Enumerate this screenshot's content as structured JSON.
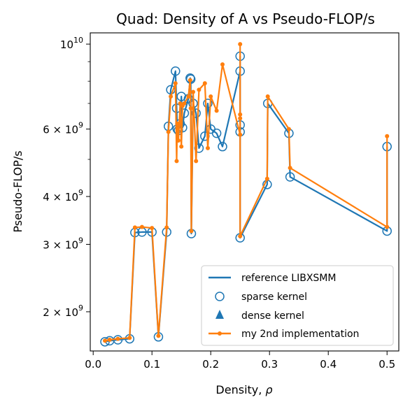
{
  "chart_data": {
    "type": "line",
    "title": "Quad: Density of A vs Pseudo-FLOP/s",
    "xlabel": "Density, ρ",
    "ylabel": "Pseudo-FLOP/s",
    "xlim": [
      -0.005,
      0.52
    ],
    "ylim": [
      1580000000.0,
      10700000000.0
    ],
    "y_scale": "log",
    "x_ticks": [
      0.0,
      0.1,
      0.2,
      0.3,
      0.4,
      0.5
    ],
    "x_tick_labels": [
      "0.0",
      "0.1",
      "0.2",
      "0.3",
      "0.4",
      "0.5"
    ],
    "y_ticks": [
      2000000000.0,
      3000000000.0,
      4000000000.0,
      6000000000.0,
      10000000000.0
    ],
    "y_tick_labels": [
      {
        "mantissa": "2 × 10",
        "exp": "9"
      },
      {
        "mantissa": "3 × 10",
        "exp": "9"
      },
      {
        "mantissa": "4 × 10",
        "exp": "9"
      },
      {
        "mantissa": "6 × 10",
        "exp": "9"
      },
      {
        "mantissa": "10",
        "exp": "10"
      }
    ],
    "y_minor_ticks": [
      5000000000.0,
      7000000000.0,
      8000000000.0,
      9000000000.0
    ],
    "grid": false,
    "legend_position": "lower right",
    "colors": {
      "reference": "#1f77b4",
      "sparse": "#1f77b4",
      "dense": "#1f77b4",
      "mine": "#ff7f0e"
    },
    "series": [
      {
        "name": "reference LIBXSMM",
        "kind": "line",
        "x": [
          0.02,
          0.028,
          0.042,
          0.062,
          0.071,
          0.083,
          0.1,
          0.111,
          0.125,
          0.128,
          0.132,
          0.14,
          0.142,
          0.143,
          0.145,
          0.148,
          0.15,
          0.152,
          0.155,
          0.162,
          0.165,
          0.166,
          0.167,
          0.17,
          0.175,
          0.18,
          0.19,
          0.195,
          0.2,
          0.21,
          0.22,
          0.25,
          0.25,
          0.25,
          0.25,
          0.25,
          0.296,
          0.297,
          0.333,
          0.335,
          0.5,
          0.5
        ],
        "values": [
          1670000000.0,
          1680000000.0,
          1690000000.0,
          1700000000.0,
          3220000000.0,
          3230000000.0,
          3230000000.0,
          1720000000.0,
          3230000000.0,
          6100000000.0,
          7600000000.0,
          8500000000.0,
          6800000000.0,
          6000000000.0,
          5950000000.0,
          6200000000.0,
          7300000000.0,
          6050000000.0,
          6600000000.0,
          7200000000.0,
          8150000000.0,
          8100000000.0,
          3200000000.0,
          7000000000.0,
          6600000000.0,
          5350000000.0,
          5750000000.0,
          7000000000.0,
          6000000000.0,
          5850000000.0,
          5400000000.0,
          8500000000.0,
          5900000000.0,
          6150000000.0,
          9300000000.0,
          3120000000.0,
          4300000000.0,
          7000000000.0,
          5850000000.0,
          4500000000.0,
          3250000000.0,
          5400000000.0
        ]
      },
      {
        "name": "sparse kernel",
        "kind": "markers",
        "marker": "open-circle",
        "x": [
          0.02,
          0.028,
          0.042,
          0.062,
          0.071,
          0.083,
          0.1,
          0.111,
          0.125,
          0.128,
          0.132,
          0.14,
          0.142,
          0.143,
          0.145,
          0.148,
          0.15,
          0.152,
          0.155,
          0.162,
          0.165,
          0.166,
          0.167,
          0.17,
          0.175,
          0.18,
          0.19,
          0.195,
          0.2,
          0.21,
          0.22,
          0.25,
          0.25,
          0.25,
          0.25,
          0.25,
          0.296,
          0.297,
          0.333,
          0.335,
          0.5,
          0.5
        ],
        "values": [
          1670000000.0,
          1680000000.0,
          1690000000.0,
          1700000000.0,
          3220000000.0,
          3230000000.0,
          3230000000.0,
          1720000000.0,
          3230000000.0,
          6100000000.0,
          7600000000.0,
          8500000000.0,
          6800000000.0,
          6000000000.0,
          5950000000.0,
          6200000000.0,
          7300000000.0,
          6050000000.0,
          6600000000.0,
          7200000000.0,
          8150000000.0,
          8100000000.0,
          3200000000.0,
          7000000000.0,
          6600000000.0,
          5350000000.0,
          5750000000.0,
          7000000000.0,
          6000000000.0,
          5850000000.0,
          5400000000.0,
          8500000000.0,
          5900000000.0,
          6150000000.0,
          9300000000.0,
          3120000000.0,
          4300000000.0,
          7000000000.0,
          5850000000.0,
          4500000000.0,
          3250000000.0,
          5400000000.0
        ]
      },
      {
        "name": "dense kernel",
        "kind": "markers",
        "marker": "triangle",
        "x": [],
        "values": []
      },
      {
        "name": "my 2nd implementation",
        "kind": "line-markers",
        "x": [
          0.02,
          0.028,
          0.042,
          0.062,
          0.071,
          0.083,
          0.1,
          0.111,
          0.125,
          0.128,
          0.132,
          0.14,
          0.142,
          0.143,
          0.145,
          0.148,
          0.15,
          0.152,
          0.155,
          0.162,
          0.165,
          0.166,
          0.167,
          0.17,
          0.175,
          0.18,
          0.19,
          0.195,
          0.2,
          0.21,
          0.22,
          0.25,
          0.25,
          0.25,
          0.25,
          0.25,
          0.296,
          0.297,
          0.333,
          0.335,
          0.5,
          0.5
        ],
        "values": [
          1680000000.0,
          1690000000.0,
          1700000000.0,
          1710000000.0,
          3320000000.0,
          3330000000.0,
          3310000000.0,
          1730000000.0,
          3320000000.0,
          5900000000.0,
          7300000000.0,
          7900000000.0,
          4950000000.0,
          6200000000.0,
          5600000000.0,
          7000000000.0,
          5400000000.0,
          6900000000.0,
          7000000000.0,
          7300000000.0,
          8050000000.0,
          6800000000.0,
          3250000000.0,
          7500000000.0,
          4950000000.0,
          7600000000.0,
          7900000000.0,
          5350000000.0,
          7300000000.0,
          6700000000.0,
          8850000000.0,
          5800000000.0,
          6550000000.0,
          6400000000.0,
          10000000000.0,
          3150000000.0,
          4450000000.0,
          7300000000.0,
          6000000000.0,
          4750000000.0,
          3330000000.0,
          5750000000.0
        ]
      }
    ]
  }
}
